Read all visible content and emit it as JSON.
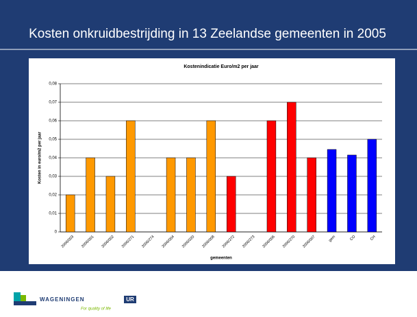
{
  "slide_title": "Kosten onkruidbestrijding in 13 Zeelandse gemeenten in 2005",
  "chart_data": {
    "type": "bar",
    "title": "Kostenindicatie Euro/m2 per jaar",
    "x_label": "gemeenten",
    "y_label": "Kosten in euro/m2 per jaar",
    "categories": [
      "2006/003",
      "2006/001",
      "2006/002",
      "2006/271",
      "2006/274",
      "2006/004",
      "2006/020",
      "2006/008",
      "2006/272",
      "2006/273",
      "2006/006",
      "2006/270",
      "2006/007",
      "gem",
      "CO",
      "CH"
    ],
    "values": [
      0.02,
      0.04,
      0.03,
      0.06,
      null,
      0.04,
      0.04,
      0.06,
      0.03,
      null,
      0.06,
      0.07,
      0.04,
      0.0445,
      0.0415,
      0.05
    ],
    "colors": [
      "#ff9900",
      "#ff9900",
      "#ff9900",
      "#ff9900",
      "#ff9900",
      "#ff9900",
      "#ff9900",
      "#ff9900",
      "#ff0000",
      "#ff0000",
      "#ff0000",
      "#ff0000",
      "#ff0000",
      "#0000ff",
      "#0000ff",
      "#0000ff"
    ],
    "ylim": [
      0,
      0.08
    ],
    "yticks": [
      0,
      {
        "value": 0.01,
        "label": "0,01"
      },
      {
        "value": 0.02,
        "label": "0,02"
      },
      {
        "value": 0.03,
        "label": "0,03"
      },
      {
        "value": 0.04,
        "label": "0,04"
      },
      {
        "value": 0.05,
        "label": "0,05"
      },
      {
        "value": 0.06,
        "label": "0,06"
      },
      {
        "value": 0.07,
        "label": "0,07"
      },
      {
        "value": 0.08,
        "label": "0,08"
      }
    ],
    "grid": true
  },
  "footer": {
    "logo_main": "WAGENINGEN",
    "logo_ur": "UR",
    "tagline": "For quality of life"
  }
}
